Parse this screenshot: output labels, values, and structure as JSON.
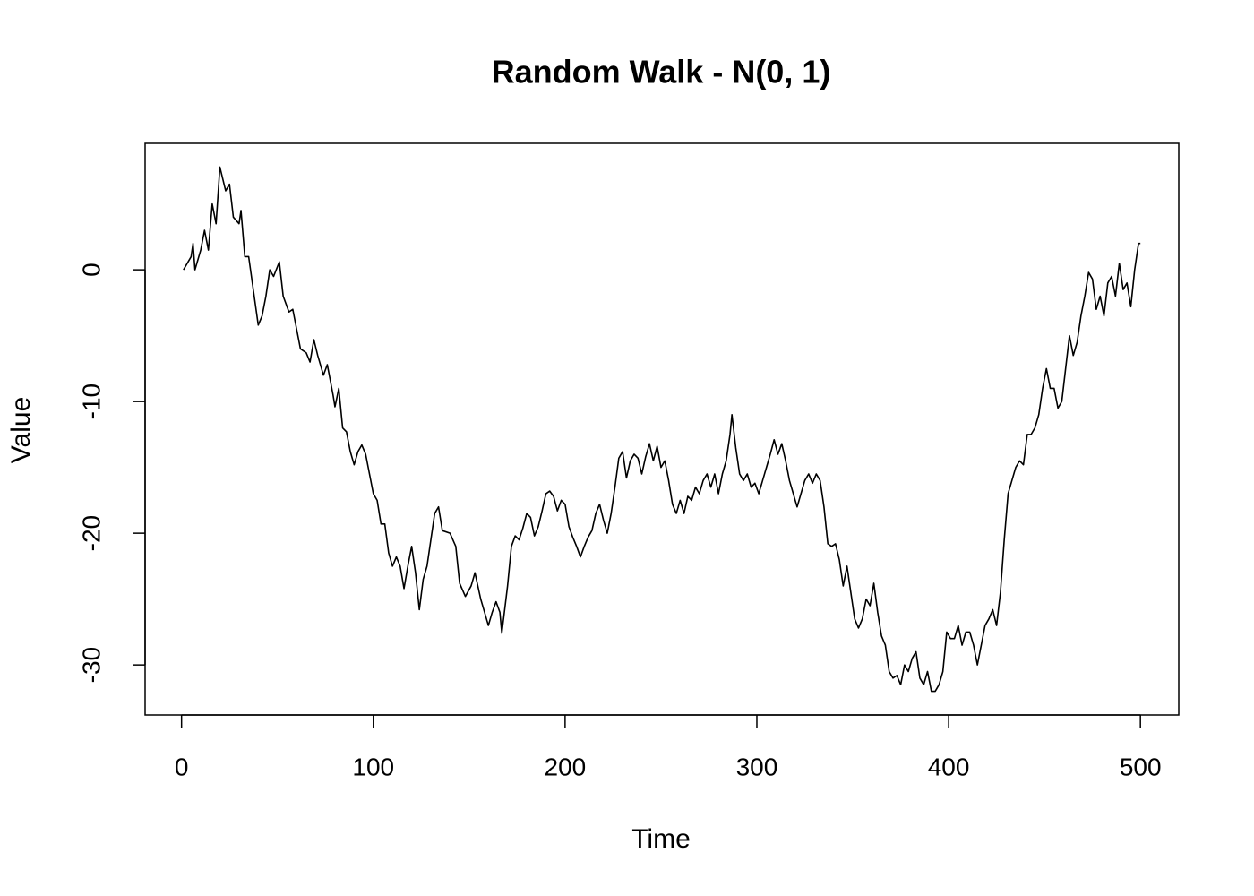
{
  "chart_data": {
    "type": "line",
    "title": "Random Walk - N(0, 1)",
    "xlabel": "Time",
    "ylabel": "Value",
    "x": [
      1,
      5,
      6,
      7,
      10,
      12,
      14,
      16,
      18,
      20,
      23,
      25,
      27,
      30,
      31,
      33,
      35,
      40,
      42,
      44,
      46,
      48,
      51,
      53,
      56,
      58,
      60,
      62,
      65,
      67,
      69,
      71,
      74,
      76,
      79,
      80,
      82,
      84,
      86,
      88,
      90,
      92,
      94,
      96,
      98,
      100,
      102,
      104,
      106,
      108,
      110,
      112,
      114,
      116,
      118,
      120,
      122,
      124,
      126,
      128,
      130,
      132,
      134,
      136,
      140,
      143,
      145,
      148,
      151,
      153,
      156,
      158,
      160,
      162,
      164,
      166,
      167,
      170,
      172,
      174,
      176,
      178,
      180,
      182,
      184,
      186,
      188,
      190,
      192,
      194,
      196,
      198,
      200,
      202,
      204,
      206,
      208,
      210,
      212,
      214,
      216,
      218,
      220,
      222,
      224,
      226,
      228,
      230,
      232,
      234,
      236,
      238,
      240,
      242,
      244,
      246,
      248,
      250,
      252,
      254,
      256,
      258,
      260,
      262,
      264,
      266,
      268,
      270,
      272,
      274,
      276,
      278,
      280,
      282,
      284,
      286,
      287,
      289,
      291,
      293,
      295,
      297,
      299,
      301,
      303,
      305,
      307,
      309,
      311,
      313,
      315,
      317,
      319,
      321,
      323,
      325,
      327,
      329,
      331,
      333,
      335,
      337,
      339,
      341,
      343,
      345,
      347,
      349,
      351,
      353,
      355,
      357,
      359,
      361,
      363,
      365,
      367,
      369,
      371,
      373,
      375,
      377,
      379,
      381,
      383,
      385,
      387,
      389,
      391,
      393,
      395,
      397,
      399,
      401,
      403,
      405,
      407,
      409,
      411,
      413,
      415,
      417,
      419,
      421,
      423,
      425,
      427,
      429,
      431,
      433,
      435,
      437,
      439,
      441,
      443,
      445,
      447,
      449,
      451,
      453,
      455,
      457,
      459,
      461,
      463,
      465,
      467,
      469,
      471,
      473,
      475,
      477,
      479,
      481,
      483,
      485,
      487,
      489,
      491,
      493,
      495,
      497,
      499,
      500
    ],
    "values": [
      0,
      1,
      2,
      0,
      1.5,
      3,
      1.5,
      5,
      3.5,
      7.8,
      6,
      6.5,
      4,
      3.5,
      4.5,
      1,
      1,
      -4.2,
      -3.5,
      -2,
      0,
      -0.5,
      0.6,
      -2,
      -3.2,
      -3,
      -4.5,
      -6,
      -6.3,
      -7,
      -5.3,
      -6.5,
      -8,
      -7.2,
      -9.5,
      -10.4,
      -9,
      -12,
      -12.3,
      -13.8,
      -14.8,
      -13.8,
      -13.3,
      -14,
      -15.5,
      -17,
      -17.5,
      -19.3,
      -19.3,
      -21.5,
      -22.5,
      -21.8,
      -22.5,
      -24.2,
      -22.5,
      -21,
      -23,
      -25.8,
      -23.5,
      -22.5,
      -20.5,
      -18.5,
      -18,
      -19.8,
      -20,
      -21,
      -23.8,
      -24.8,
      -24,
      -23,
      -25,
      -26,
      -27,
      -26,
      -25.2,
      -26,
      -27.6,
      -24,
      -21,
      -20.2,
      -20.5,
      -19.6,
      -18.5,
      -18.8,
      -20.2,
      -19.5,
      -18.3,
      -17,
      -16.8,
      -17.2,
      -18.3,
      -17.5,
      -17.8,
      -19.5,
      -20.3,
      -21,
      -21.8,
      -21,
      -20.3,
      -19.8,
      -18.5,
      -17.8,
      -19,
      -20,
      -18.5,
      -16.5,
      -14.3,
      -13.8,
      -15.8,
      -14.5,
      -14,
      -14.3,
      -15.5,
      -14.2,
      -13.2,
      -14.5,
      -13.4,
      -15,
      -14.5,
      -16,
      -17.8,
      -18.5,
      -17.5,
      -18.5,
      -17.2,
      -17.5,
      -16.5,
      -17,
      -16,
      -15.5,
      -16.5,
      -15.5,
      -17,
      -15.5,
      -14.5,
      -12.5,
      -11,
      -13.5,
      -15.5,
      -16,
      -15.5,
      -16.5,
      -16.2,
      -17,
      -16,
      -15,
      -14,
      -12.9,
      -14,
      -13.2,
      -14.5,
      -16,
      -17,
      -18,
      -17,
      -16,
      -15.5,
      -16.2,
      -15.5,
      -16,
      -18,
      -20.8,
      -21,
      -20.8,
      -22,
      -24,
      -22.5,
      -24.5,
      -26.5,
      -27.2,
      -26.5,
      -25,
      -25.5,
      -23.8,
      -26,
      -27.8,
      -28.5,
      -30.5,
      -31,
      -30.8,
      -31.5,
      -30,
      -30.5,
      -29.5,
      -29,
      -31,
      -31.5,
      -30.5,
      -32,
      -32,
      -31.5,
      -30.5,
      -27.5,
      -28,
      -28,
      -27,
      -28.5,
      -27.5,
      -27.5,
      -28.5,
      -30,
      -28.5,
      -27,
      -26.5,
      -25.8,
      -27,
      -24.5,
      -20.5,
      -17,
      -16,
      -15,
      -14.5,
      -14.8,
      -12.5,
      -12.5,
      -12,
      -11,
      -9,
      -7.5,
      -9,
      -9,
      -10.5,
      -10,
      -7.5,
      -5,
      -6.5,
      -5.5,
      -3.5,
      -2,
      -0.2,
      -0.7,
      -3,
      -2,
      -3.5,
      -1,
      -0.5,
      -2,
      0.5,
      -1.5,
      -1,
      -2.8,
      0,
      2,
      2
    ],
    "color": "#000000",
    "xlim": [
      -19,
      520
    ],
    "ylim": [
      -33.8,
      9.6
    ],
    "xticks": [
      0,
      100,
      200,
      300,
      400,
      500
    ],
    "yticks": [
      -30,
      -20,
      -10,
      0
    ]
  }
}
